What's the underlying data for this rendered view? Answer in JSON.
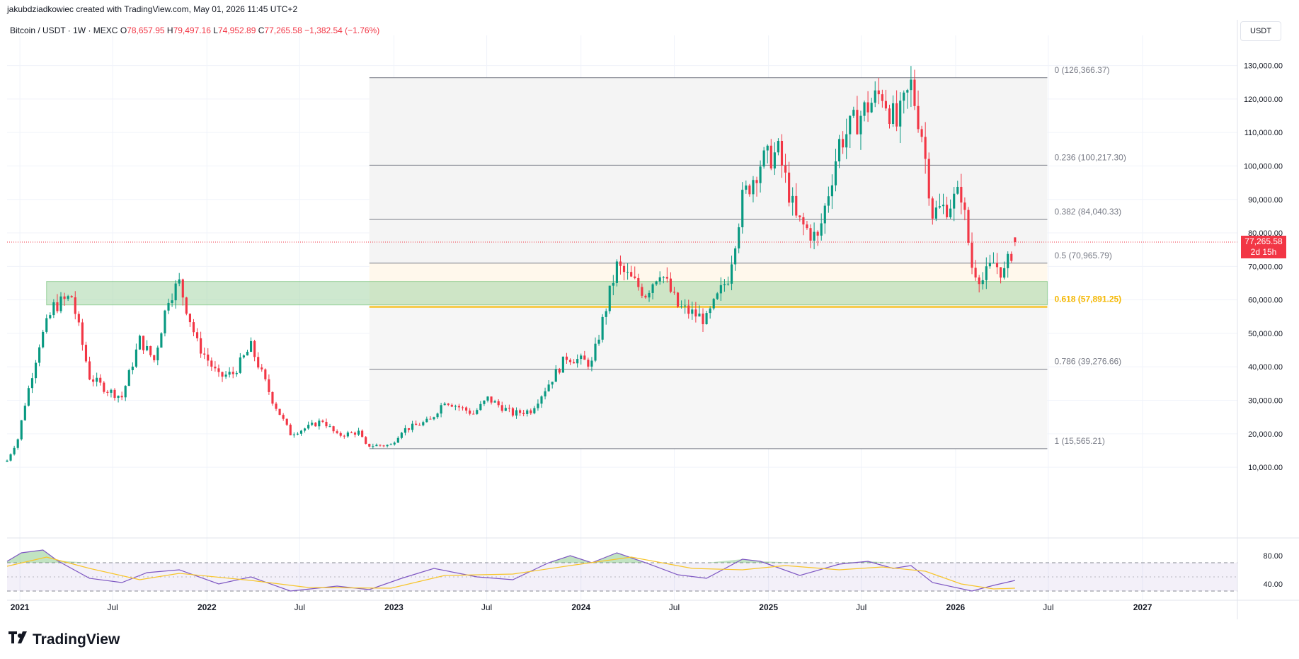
{
  "header": {
    "credit": "jakubdziadkowiec created with TradingView.com, May 01, 2026 11:45 UTC+2",
    "symbol": "Bitcoin / USDT · 1W · MEXC",
    "open_label": "O",
    "open": "78,657.95",
    "high_label": "H",
    "high": "79,497.16",
    "low_label": "L",
    "low": "74,952.89",
    "close_label": "C",
    "close": "77,265.58",
    "change": "−1,382.54 (−1.76%)"
  },
  "toolbar": {
    "currency": "USDT"
  },
  "last_price": {
    "value": "77,265.58",
    "countdown": "2d 15h"
  },
  "footer": {
    "brand": "TradingView"
  },
  "colors": {
    "up": "#089981",
    "down": "#f23645",
    "fib_line": "#787b86",
    "fib_618": "#f5b700",
    "zone": "#a5d6a7",
    "rsi": "#7e57c2",
    "rsi_ma": "#f7c52b"
  },
  "chart_data": [
    {
      "type": "candlestick",
      "title": "Bitcoin / USDT · 1W · MEXC",
      "y_axis_ticks": [
        "10,000.00",
        "20,000.00",
        "30,000.00",
        "40,000.00",
        "50,000.00",
        "60,000.00",
        "70,000.00",
        "80,000.00",
        "90,000.00",
        "100,000.00",
        "110,000.00",
        "120,000.00",
        "130,000.00"
      ],
      "x_axis_ticks": [
        "2021",
        "Jul",
        "2022",
        "Jul",
        "2023",
        "Jul",
        "2024",
        "Jul",
        "2025",
        "Jul",
        "2026",
        "Jul",
        "2027"
      ],
      "ylim": [
        -9000,
        139000
      ],
      "xlim": [
        "2020-12-07",
        "2027-07-05"
      ],
      "weekly_close_path": [
        {
          "date": "2020-12-07",
          "value": 12000
        },
        {
          "date": "2020-12-28",
          "value": 18500
        },
        {
          "date": "2021-01-11",
          "value": 29000
        },
        {
          "date": "2021-02-08",
          "value": 47000
        },
        {
          "date": "2021-03-08",
          "value": 58000
        },
        {
          "date": "2021-04-12",
          "value": 61000
        },
        {
          "date": "2021-05-17",
          "value": 37000
        },
        {
          "date": "2021-06-21",
          "value": 33000
        },
        {
          "date": "2021-07-19",
          "value": 31000
        },
        {
          "date": "2021-08-23",
          "value": 48000
        },
        {
          "date": "2021-09-20",
          "value": 42000
        },
        {
          "date": "2021-10-18",
          "value": 61000
        },
        {
          "date": "2021-11-08",
          "value": 65000
        },
        {
          "date": "2021-12-13",
          "value": 47000
        },
        {
          "date": "2022-01-24",
          "value": 37000
        },
        {
          "date": "2022-02-21",
          "value": 38000
        },
        {
          "date": "2022-03-28",
          "value": 46000
        },
        {
          "date": "2022-05-09",
          "value": 30000
        },
        {
          "date": "2022-06-13",
          "value": 20000
        },
        {
          "date": "2022-07-18",
          "value": 22000
        },
        {
          "date": "2022-08-15",
          "value": 24000
        },
        {
          "date": "2022-09-12",
          "value": 19500
        },
        {
          "date": "2022-10-24",
          "value": 20500
        },
        {
          "date": "2022-11-07",
          "value": 16500
        },
        {
          "date": "2022-12-26",
          "value": 16600
        },
        {
          "date": "2023-01-16",
          "value": 21000
        },
        {
          "date": "2023-03-13",
          "value": 24000
        },
        {
          "date": "2023-04-10",
          "value": 30000
        },
        {
          "date": "2023-06-05",
          "value": 26000
        },
        {
          "date": "2023-07-03",
          "value": 30500
        },
        {
          "date": "2023-08-21",
          "value": 26000
        },
        {
          "date": "2023-09-25",
          "value": 27000
        },
        {
          "date": "2023-10-30",
          "value": 35000
        },
        {
          "date": "2023-12-04",
          "value": 43000
        },
        {
          "date": "2024-01-22",
          "value": 41000
        },
        {
          "date": "2024-02-26",
          "value": 62000
        },
        {
          "date": "2024-03-11",
          "value": 70000
        },
        {
          "date": "2024-05-06",
          "value": 62000
        },
        {
          "date": "2024-06-03",
          "value": 69000
        },
        {
          "date": "2024-07-08",
          "value": 58000
        },
        {
          "date": "2024-08-05",
          "value": 56000
        },
        {
          "date": "2024-09-02",
          "value": 54000
        },
        {
          "date": "2024-10-14",
          "value": 67000
        },
        {
          "date": "2024-11-11",
          "value": 90000
        },
        {
          "date": "2024-12-16",
          "value": 101000
        },
        {
          "date": "2025-01-20",
          "value": 104000
        },
        {
          "date": "2025-02-24",
          "value": 84000
        },
        {
          "date": "2025-04-07",
          "value": 78000
        },
        {
          "date": "2025-05-19",
          "value": 107000
        },
        {
          "date": "2025-07-14",
          "value": 118000
        },
        {
          "date": "2025-08-11",
          "value": 122000
        },
        {
          "date": "2025-09-08",
          "value": 112000
        },
        {
          "date": "2025-10-06",
          "value": 124000
        },
        {
          "date": "2025-10-27",
          "value": 110000
        },
        {
          "date": "2025-11-17",
          "value": 86000
        },
        {
          "date": "2025-12-15",
          "value": 88000
        },
        {
          "date": "2026-01-12",
          "value": 92000
        },
        {
          "date": "2026-02-02",
          "value": 70000
        },
        {
          "date": "2026-02-23",
          "value": 66000
        },
        {
          "date": "2026-03-16",
          "value": 71000
        },
        {
          "date": "2026-04-06",
          "value": 68000
        },
        {
          "date": "2026-04-27",
          "value": 77265.58
        }
      ],
      "fib_retracement": {
        "start_date": "2022-11-14",
        "end_date": "2026-06-29",
        "levels": [
          {
            "ratio": "0",
            "value": 126366.37,
            "label": "0 (126,366.37)"
          },
          {
            "ratio": "0.236",
            "value": 100217.3,
            "label": "0.236 (100,217.30)"
          },
          {
            "ratio": "0.382",
            "value": 84040.33,
            "label": "0.382 (84,040.33)"
          },
          {
            "ratio": "0.5",
            "value": 70965.79,
            "label": "0.5 (70,965.79)"
          },
          {
            "ratio": "0.618",
            "value": 57891.25,
            "label": "0.618 (57,891.25)"
          },
          {
            "ratio": "0.786",
            "value": 39276.66,
            "label": "0.786 (39,276.66)"
          },
          {
            "ratio": "1",
            "value": 15565.21,
            "label": "1 (15,565.21)"
          }
        ]
      },
      "support_zone": {
        "from": "2021-02-22",
        "to": "2026-06-29",
        "y_low": 58500,
        "y_high": 65500
      },
      "last_price_line": 77265.58
    },
    {
      "type": "line",
      "title": "",
      "y_axis_ticks": [
        "80.00",
        "40.00"
      ],
      "ylim": [
        25,
        90
      ],
      "bands": {
        "upper": 70,
        "middle": 50,
        "lower": 30
      },
      "series": [
        {
          "points": [
            {
              "date": "2020-12-07",
              "value": 72
            },
            {
              "date": "2021-01-04",
              "value": 84
            },
            {
              "date": "2021-02-15",
              "value": 88
            },
            {
              "date": "2021-03-15",
              "value": 73
            },
            {
              "date": "2021-05-17",
              "value": 48
            },
            {
              "date": "2021-07-19",
              "value": 42
            },
            {
              "date": "2021-09-06",
              "value": 56
            },
            {
              "date": "2021-11-08",
              "value": 60
            },
            {
              "date": "2022-01-24",
              "value": 40
            },
            {
              "date": "2022-03-28",
              "value": 50
            },
            {
              "date": "2022-06-13",
              "value": 30
            },
            {
              "date": "2022-09-12",
              "value": 37
            },
            {
              "date": "2022-11-14",
              "value": 32
            },
            {
              "date": "2023-01-16",
              "value": 48
            },
            {
              "date": "2023-03-20",
              "value": 62
            },
            {
              "date": "2023-06-12",
              "value": 50
            },
            {
              "date": "2023-08-21",
              "value": 46
            },
            {
              "date": "2023-10-30",
              "value": 70
            },
            {
              "date": "2023-12-11",
              "value": 80
            },
            {
              "date": "2024-01-22",
              "value": 70
            },
            {
              "date": "2024-03-11",
              "value": 84
            },
            {
              "date": "2024-05-06",
              "value": 70
            },
            {
              "date": "2024-07-08",
              "value": 53
            },
            {
              "date": "2024-09-02",
              "value": 48
            },
            {
              "date": "2024-11-11",
              "value": 75
            },
            {
              "date": "2024-12-16",
              "value": 72
            },
            {
              "date": "2025-03-03",
              "value": 52
            },
            {
              "date": "2025-05-19",
              "value": 68
            },
            {
              "date": "2025-07-14",
              "value": 72
            },
            {
              "date": "2025-09-01",
              "value": 62
            },
            {
              "date": "2025-10-06",
              "value": 66
            },
            {
              "date": "2025-11-17",
              "value": 42
            },
            {
              "date": "2026-02-02",
              "value": 30
            },
            {
              "date": "2026-03-16",
              "value": 38
            },
            {
              "date": "2026-04-27",
              "value": 45
            }
          ]
        },
        {
          "points": [
            {
              "date": "2020-12-07",
              "value": 65
            },
            {
              "date": "2021-02-22",
              "value": 78
            },
            {
              "date": "2021-05-17",
              "value": 62
            },
            {
              "date": "2021-08-23",
              "value": 46
            },
            {
              "date": "2021-11-08",
              "value": 55
            },
            {
              "date": "2022-03-28",
              "value": 45
            },
            {
              "date": "2022-07-18",
              "value": 35
            },
            {
              "date": "2022-12-26",
              "value": 34
            },
            {
              "date": "2023-04-10",
              "value": 52
            },
            {
              "date": "2023-08-21",
              "value": 54
            },
            {
              "date": "2023-12-11",
              "value": 66
            },
            {
              "date": "2024-04-08",
              "value": 78
            },
            {
              "date": "2024-08-05",
              "value": 62
            },
            {
              "date": "2024-11-11",
              "value": 60
            },
            {
              "date": "2025-02-03",
              "value": 66
            },
            {
              "date": "2025-05-19",
              "value": 60
            },
            {
              "date": "2025-08-11",
              "value": 64
            },
            {
              "date": "2025-11-03",
              "value": 58
            },
            {
              "date": "2026-01-12",
              "value": 40
            },
            {
              "date": "2026-03-16",
              "value": 33
            },
            {
              "date": "2026-04-27",
              "value": 34
            }
          ]
        }
      ]
    }
  ]
}
